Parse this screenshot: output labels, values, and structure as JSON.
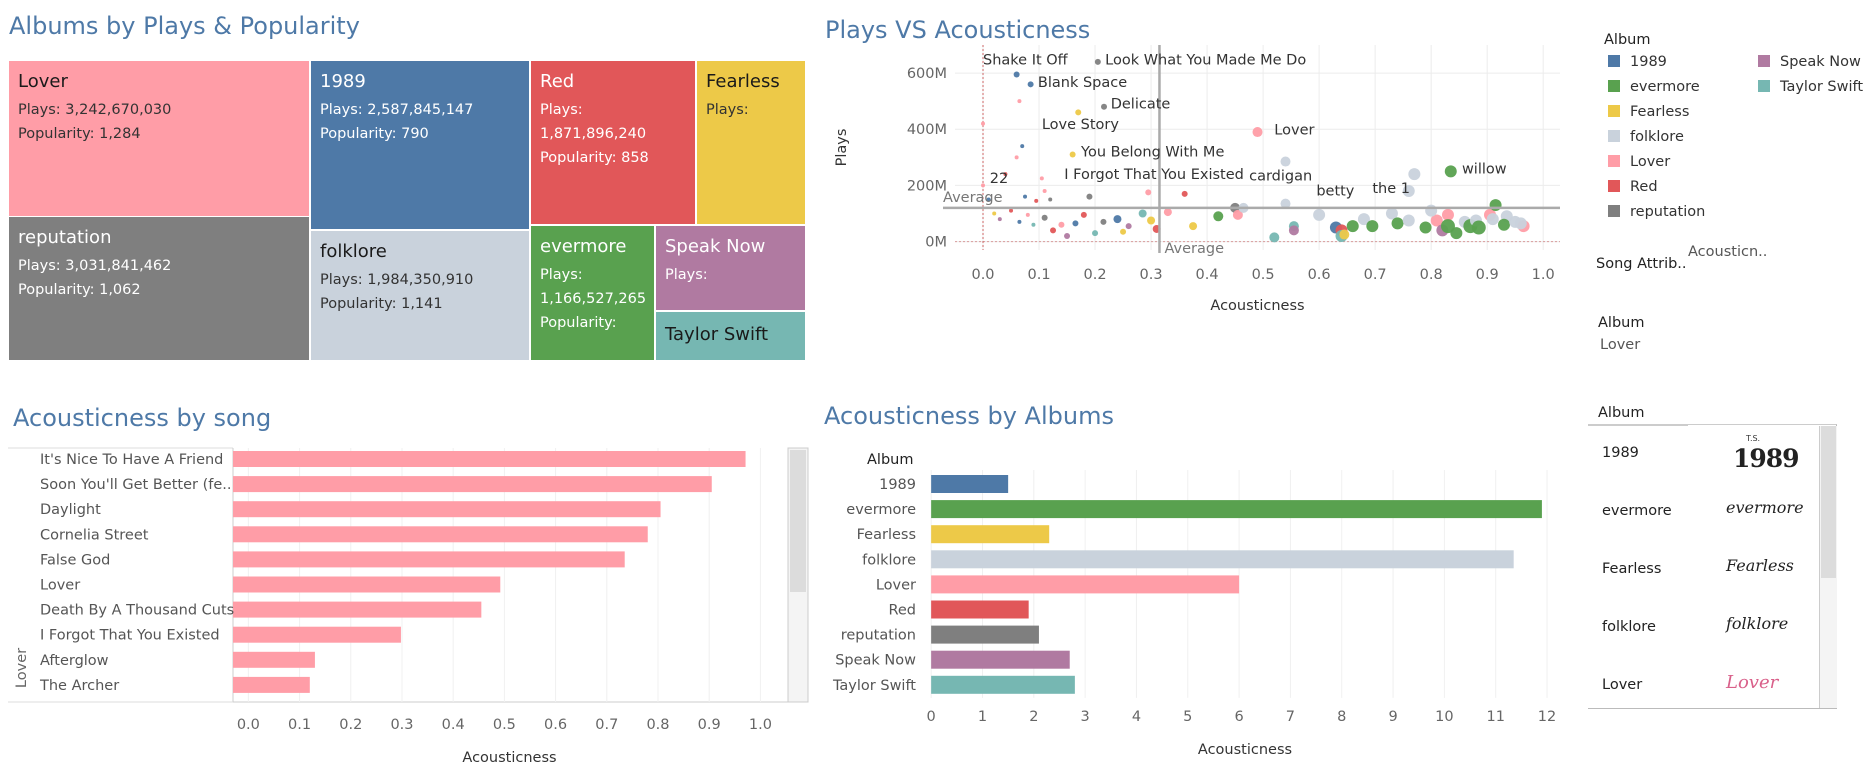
{
  "treemap": {
    "title": "Albums by Plays & Popularity",
    "cells": [
      {
        "name": "Lover",
        "color": "#ff9da7",
        "lines": [
          "Plays: 3,242,670,030",
          "Popularity: 1,284"
        ]
      },
      {
        "name": "reputation",
        "color": "#7f7f7f",
        "lines": [
          "Plays: 3,031,841,462",
          "Popularity: 1,062"
        ]
      },
      {
        "name": "1989",
        "color": "#4e79a7",
        "lines": [
          "Plays: 2,587,845,147",
          "Popularity: 790"
        ]
      },
      {
        "name": "folklore",
        "color": "#c9d2dc",
        "lines": [
          "Plays: 1,984,350,910",
          "Popularity: 1,141"
        ]
      },
      {
        "name": "Red",
        "color": "#e15759",
        "lines": [
          "Plays:",
          "1,871,896,240",
          "Popularity: 858"
        ]
      },
      {
        "name": "Fearless",
        "color": "#edc948",
        "lines": [
          "Plays:"
        ]
      },
      {
        "name": "evermore",
        "color": "#59a14f",
        "lines": [
          "Plays:",
          "1,166,527,265",
          "Popularity:"
        ]
      },
      {
        "name": "Speak Now",
        "color": "#b07aa1",
        "lines": [
          "Plays:"
        ]
      },
      {
        "name": "Taylor Swift",
        "color": "#76b7b2",
        "lines": []
      }
    ]
  },
  "scatter_title": "Plays VS Acousticness",
  "song_title": "Acousticness by song",
  "album_title": "Acousticness by Albums",
  "legend": {
    "title": "Album",
    "items": [
      {
        "label": "1989",
        "color": "#4e79a7"
      },
      {
        "label": "evermore",
        "color": "#59a14f"
      },
      {
        "label": "Fearless",
        "color": "#edc948"
      },
      {
        "label": "folklore",
        "color": "#c9d2dc"
      },
      {
        "label": "Lover",
        "color": "#ff9da7"
      },
      {
        "label": "Red",
        "color": "#e15759"
      },
      {
        "label": "reputation",
        "color": "#7f7f7f"
      },
      {
        "label": "Speak Now",
        "color": "#b07aa1"
      },
      {
        "label": "Taylor Swift",
        "color": "#76b7b2"
      }
    ]
  },
  "filters": {
    "song_attrib_label": "Song Attrib..",
    "song_attrib_value": "Acousticn..",
    "album_label": "Album",
    "album_value": "Lover"
  },
  "album_list": {
    "header": "Album",
    "items": [
      "1989",
      "evermore",
      "Fearless",
      "folklore",
      "Lover"
    ],
    "logos": [
      "1989",
      "evermore",
      "Fearless",
      "folklore",
      "Lover"
    ],
    "logo_sup": "T.S."
  },
  "chart_data": [
    {
      "type": "scatter",
      "title": "Plays VS Acousticness",
      "xlabel": "Acousticness",
      "ylabel": "Plays",
      "xlim": [
        -0.05,
        1.03
      ],
      "ylim": [
        -30,
        700
      ],
      "xticks": [
        "0.0",
        "0.1",
        "0.2",
        "0.3",
        "0.4",
        "0.5",
        "0.6",
        "0.7",
        "0.8",
        "0.9",
        "1.0"
      ],
      "xtick_values": [
        0,
        0.1,
        0.2,
        0.3,
        0.4,
        0.5,
        0.6,
        0.7,
        0.8,
        0.9,
        1.0
      ],
      "yticks": [
        "0M",
        "200M",
        "400M",
        "600M"
      ],
      "ytick_values": [
        0,
        200,
        400,
        600
      ],
      "avg_x": 0.315,
      "avg_y": 120,
      "avg_label": "Average",
      "points": [
        {
          "x": 0.06,
          "y": 595,
          "a": "1989",
          "s": 3
        },
        {
          "x": 0.085,
          "y": 560,
          "a": "1989",
          "s": 3
        },
        {
          "x": 0.205,
          "y": 640,
          "a": "reputation",
          "s": 3
        },
        {
          "x": 0.216,
          "y": 480,
          "a": "reputation",
          "s": 3
        },
        {
          "x": 0.17,
          "y": 460,
          "a": "Fearless",
          "s": 3
        },
        {
          "x": 0.16,
          "y": 310,
          "a": "Fearless",
          "s": 3
        },
        {
          "x": 0.19,
          "y": 160,
          "a": "reputation",
          "s": 3
        },
        {
          "x": 0.49,
          "y": 390,
          "a": "Lover",
          "s": 5
        },
        {
          "x": 0.54,
          "y": 285,
          "a": "folklore",
          "s": 5
        },
        {
          "x": 0.835,
          "y": 250,
          "a": "evermore",
          "s": 6
        },
        {
          "x": 0.77,
          "y": 240,
          "a": "folklore",
          "s": 6
        },
        {
          "x": 0.76,
          "y": 180,
          "a": "folklore",
          "s": 6
        },
        {
          "x": 0.54,
          "y": 135,
          "a": "folklore",
          "s": 5
        },
        {
          "x": 0.295,
          "y": 175,
          "a": "Lover",
          "s": 3
        },
        {
          "x": 0.36,
          "y": 170,
          "a": "Red",
          "s": 3
        },
        {
          "x": 0.065,
          "y": 500,
          "a": "Lover",
          "s": 2
        },
        {
          "x": 0.07,
          "y": 340,
          "a": "1989",
          "s": 2
        },
        {
          "x": 0.06,
          "y": 300,
          "a": "Lover",
          "s": 2
        },
        {
          "x": 0.0,
          "y": 420,
          "a": "Lover",
          "s": 2
        },
        {
          "x": 0.04,
          "y": 240,
          "a": "Red",
          "s": 2
        },
        {
          "x": 0.11,
          "y": 180,
          "a": "Lover",
          "s": 2
        },
        {
          "x": 0.105,
          "y": 225,
          "a": "Lover",
          "s": 2
        },
        {
          "x": 0.075,
          "y": 160,
          "a": "1989",
          "s": 2
        },
        {
          "x": 0.0,
          "y": 200,
          "a": "Lover",
          "s": 2
        },
        {
          "x": 0.12,
          "y": 150,
          "a": "reputation",
          "s": 2
        },
        {
          "x": 0.095,
          "y": 145,
          "a": "Red",
          "s": 2
        },
        {
          "x": 0.01,
          "y": 150,
          "a": "1989",
          "s": 2
        },
        {
          "x": 0.02,
          "y": 100,
          "a": "Fearless",
          "s": 2
        },
        {
          "x": 0.03,
          "y": 80,
          "a": "Speak Now",
          "s": 2
        },
        {
          "x": 0.05,
          "y": 110,
          "a": "Red",
          "s": 2
        },
        {
          "x": 0.065,
          "y": 70,
          "a": "1989",
          "s": 2
        },
        {
          "x": 0.08,
          "y": 95,
          "a": "Lover",
          "s": 2
        },
        {
          "x": 0.09,
          "y": 60,
          "a": "Taylor Swift",
          "s": 2
        },
        {
          "x": 0.11,
          "y": 85,
          "a": "reputation",
          "s": 3
        },
        {
          "x": 0.125,
          "y": 40,
          "a": "Red",
          "s": 3
        },
        {
          "x": 0.14,
          "y": 60,
          "a": "Lover",
          "s": 3
        },
        {
          "x": 0.15,
          "y": 20,
          "a": "Speak Now",
          "s": 3
        },
        {
          "x": 0.165,
          "y": 65,
          "a": "1989",
          "s": 3
        },
        {
          "x": 0.18,
          "y": 95,
          "a": "Red",
          "s": 3
        },
        {
          "x": 0.2,
          "y": 30,
          "a": "Taylor Swift",
          "s": 3
        },
        {
          "x": 0.215,
          "y": 70,
          "a": "reputation",
          "s": 3
        },
        {
          "x": 0.24,
          "y": 80,
          "a": "1989",
          "s": 4
        },
        {
          "x": 0.25,
          "y": 35,
          "a": "Fearless",
          "s": 3
        },
        {
          "x": 0.26,
          "y": 55,
          "a": "Speak Now",
          "s": 3
        },
        {
          "x": 0.285,
          "y": 100,
          "a": "Taylor Swift",
          "s": 4
        },
        {
          "x": 0.3,
          "y": 75,
          "a": "Fearless",
          "s": 4
        },
        {
          "x": 0.31,
          "y": 45,
          "a": "Red",
          "s": 4
        },
        {
          "x": 0.33,
          "y": 105,
          "a": "Lover",
          "s": 4
        },
        {
          "x": 0.375,
          "y": 55,
          "a": "Fearless",
          "s": 4
        },
        {
          "x": 0.42,
          "y": 90,
          "a": "evermore",
          "s": 5
        },
        {
          "x": 0.45,
          "y": 120,
          "a": "reputation",
          "s": 5
        },
        {
          "x": 0.455,
          "y": 95,
          "a": "Lover",
          "s": 5
        },
        {
          "x": 0.465,
          "y": 120,
          "a": "folklore",
          "s": 5
        },
        {
          "x": 0.52,
          "y": 15,
          "a": "Taylor Swift",
          "s": 5
        },
        {
          "x": 0.555,
          "y": 55,
          "a": "Taylor Swift",
          "s": 5
        },
        {
          "x": 0.555,
          "y": 40,
          "a": "Speak Now",
          "s": 5
        },
        {
          "x": 0.6,
          "y": 95,
          "a": "folklore",
          "s": 6
        },
        {
          "x": 0.63,
          "y": 50,
          "a": "1989",
          "s": 6
        },
        {
          "x": 0.64,
          "y": 40,
          "a": "Red",
          "s": 6
        },
        {
          "x": 0.64,
          "y": 20,
          "a": "Taylor Swift",
          "s": 6
        },
        {
          "x": 0.645,
          "y": 25,
          "a": "Fearless",
          "s": 5
        },
        {
          "x": 0.66,
          "y": 55,
          "a": "evermore",
          "s": 6
        },
        {
          "x": 0.68,
          "y": 80,
          "a": "folklore",
          "s": 6
        },
        {
          "x": 0.695,
          "y": 55,
          "a": "evermore",
          "s": 6
        },
        {
          "x": 0.73,
          "y": 100,
          "a": "folklore",
          "s": 6
        },
        {
          "x": 0.74,
          "y": 65,
          "a": "evermore",
          "s": 6
        },
        {
          "x": 0.76,
          "y": 75,
          "a": "folklore",
          "s": 6
        },
        {
          "x": 0.79,
          "y": 50,
          "a": "evermore",
          "s": 6
        },
        {
          "x": 0.81,
          "y": 75,
          "a": "Lover",
          "s": 6
        },
        {
          "x": 0.8,
          "y": 110,
          "a": "folklore",
          "s": 6
        },
        {
          "x": 0.82,
          "y": 40,
          "a": "Speak Now",
          "s": 6
        },
        {
          "x": 0.83,
          "y": 95,
          "a": "Lover",
          "s": 6
        },
        {
          "x": 0.83,
          "y": 55,
          "a": "evermore",
          "s": 7
        },
        {
          "x": 0.845,
          "y": 30,
          "a": "evermore",
          "s": 6
        },
        {
          "x": 0.86,
          "y": 70,
          "a": "folklore",
          "s": 6
        },
        {
          "x": 0.87,
          "y": 55,
          "a": "evermore",
          "s": 7
        },
        {
          "x": 0.88,
          "y": 75,
          "a": "folklore",
          "s": 6
        },
        {
          "x": 0.885,
          "y": 50,
          "a": "evermore",
          "s": 7
        },
        {
          "x": 0.905,
          "y": 95,
          "a": "Lover",
          "s": 6
        },
        {
          "x": 0.91,
          "y": 80,
          "a": "folklore",
          "s": 6
        },
        {
          "x": 0.915,
          "y": 130,
          "a": "evermore",
          "s": 6
        },
        {
          "x": 0.935,
          "y": 90,
          "a": "folklore",
          "s": 6
        },
        {
          "x": 0.93,
          "y": 60,
          "a": "evermore",
          "s": 6
        },
        {
          "x": 0.95,
          "y": 70,
          "a": "folklore",
          "s": 6
        },
        {
          "x": 0.965,
          "y": 55,
          "a": "Lover",
          "s": 6
        },
        {
          "x": 0.96,
          "y": 65,
          "a": "folklore",
          "s": 6
        }
      ],
      "labels": [
        {
          "x": 0.0,
          "y": 630,
          "t": "Shake It Off",
          "anchor": "start"
        },
        {
          "x": 0.218,
          "y": 630,
          "t": "Look What You Made Me Do",
          "anchor": "start"
        },
        {
          "x": 0.098,
          "y": 550,
          "t": "Blank Space",
          "anchor": "start"
        },
        {
          "x": 0.228,
          "y": 474,
          "t": "Delicate",
          "anchor": "start"
        },
        {
          "x": 0.105,
          "y": 400,
          "t": "Love Story",
          "anchor": "start"
        },
        {
          "x": 0.52,
          "y": 382,
          "t": "Lover",
          "anchor": "start"
        },
        {
          "x": 0.175,
          "y": 303,
          "t": "You Belong With Me",
          "anchor": "start"
        },
        {
          "x": 0.475,
          "y": 217,
          "t": "cardigan",
          "anchor": "start"
        },
        {
          "x": 0.855,
          "y": 243,
          "t": "willow",
          "anchor": "start"
        },
        {
          "x": 0.145,
          "y": 223,
          "t": "I Forgot That You Existed",
          "anchor": "start"
        },
        {
          "x": 0.012,
          "y": 208,
          "t": "22",
          "anchor": "start"
        },
        {
          "x": 0.695,
          "y": 173,
          "t": "the 1",
          "anchor": "start"
        },
        {
          "x": 0.595,
          "y": 164,
          "t": "betty",
          "anchor": "start"
        }
      ]
    },
    {
      "type": "bar",
      "title": "Acousticness by song",
      "orientation": "horizontal",
      "xlabel": "Acousticness",
      "group_label": "Lover",
      "xlim": [
        -0.03,
        1.05
      ],
      "xticks": [
        "0.0",
        "0.1",
        "0.2",
        "0.3",
        "0.4",
        "0.5",
        "0.6",
        "0.7",
        "0.8",
        "0.9",
        "1.0"
      ],
      "xtick_values": [
        0,
        0.1,
        0.2,
        0.3,
        0.4,
        0.5,
        0.6,
        0.7,
        0.8,
        0.9,
        1.0
      ],
      "categories": [
        "It's Nice To Have A Friend",
        "Soon You'll Get Better (fe..",
        "Daylight",
        "Cornelia Street",
        "False God",
        "Lover",
        "Death By A Thousand Cuts",
        "I Forgot That You Existed",
        "Afterglow",
        "The Archer"
      ],
      "values": [
        0.971,
        0.905,
        0.805,
        0.78,
        0.735,
        0.492,
        0.455,
        0.298,
        0.13,
        0.12
      ],
      "color": "#ff9da7"
    },
    {
      "type": "bar",
      "title": "Acousticness by Albums",
      "orientation": "horizontal",
      "xlabel": "Acousticness",
      "ylabel": "Album",
      "xlim": [
        -0.12,
        12.35
      ],
      "xticks": [
        "0",
        "1",
        "2",
        "3",
        "4",
        "5",
        "6",
        "7",
        "8",
        "9",
        "10",
        "11",
        "12"
      ],
      "xtick_values": [
        0,
        1,
        2,
        3,
        4,
        5,
        6,
        7,
        8,
        9,
        10,
        11,
        12
      ],
      "categories": [
        "1989",
        "evermore",
        "Fearless",
        "folklore",
        "Lover",
        "Red",
        "reputation",
        "Speak Now",
        "Taylor Swift"
      ],
      "values": [
        1.5,
        11.9,
        2.3,
        11.35,
        6.0,
        1.9,
        2.1,
        2.7,
        2.8
      ],
      "colors": [
        "#4e79a7",
        "#59a14f",
        "#edc948",
        "#c9d2dc",
        "#ff9da7",
        "#e15759",
        "#7f7f7f",
        "#b07aa1",
        "#76b7b2"
      ]
    }
  ]
}
